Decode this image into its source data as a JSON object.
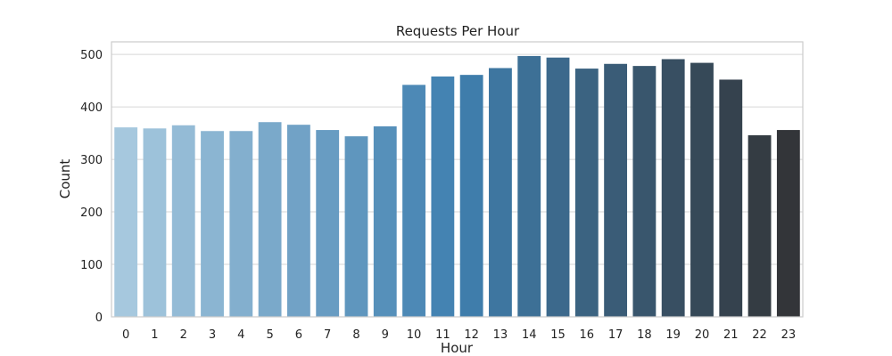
{
  "chart_data": {
    "type": "bar",
    "title": "Requests Per Hour",
    "xlabel": "Hour",
    "ylabel": "Count",
    "categories": [
      "0",
      "1",
      "2",
      "3",
      "4",
      "5",
      "6",
      "7",
      "8",
      "9",
      "10",
      "11",
      "12",
      "13",
      "14",
      "15",
      "16",
      "17",
      "18",
      "19",
      "20",
      "21",
      "22",
      "23"
    ],
    "values": [
      361,
      359,
      365,
      354,
      354,
      371,
      366,
      356,
      344,
      363,
      442,
      458,
      461,
      474,
      497,
      494,
      473,
      482,
      478,
      491,
      484,
      452,
      346,
      356
    ],
    "ylim": [
      0,
      524
    ],
    "yticks": [
      0,
      100,
      200,
      300,
      400,
      500
    ],
    "grid": true,
    "palette": "Blues_d"
  }
}
